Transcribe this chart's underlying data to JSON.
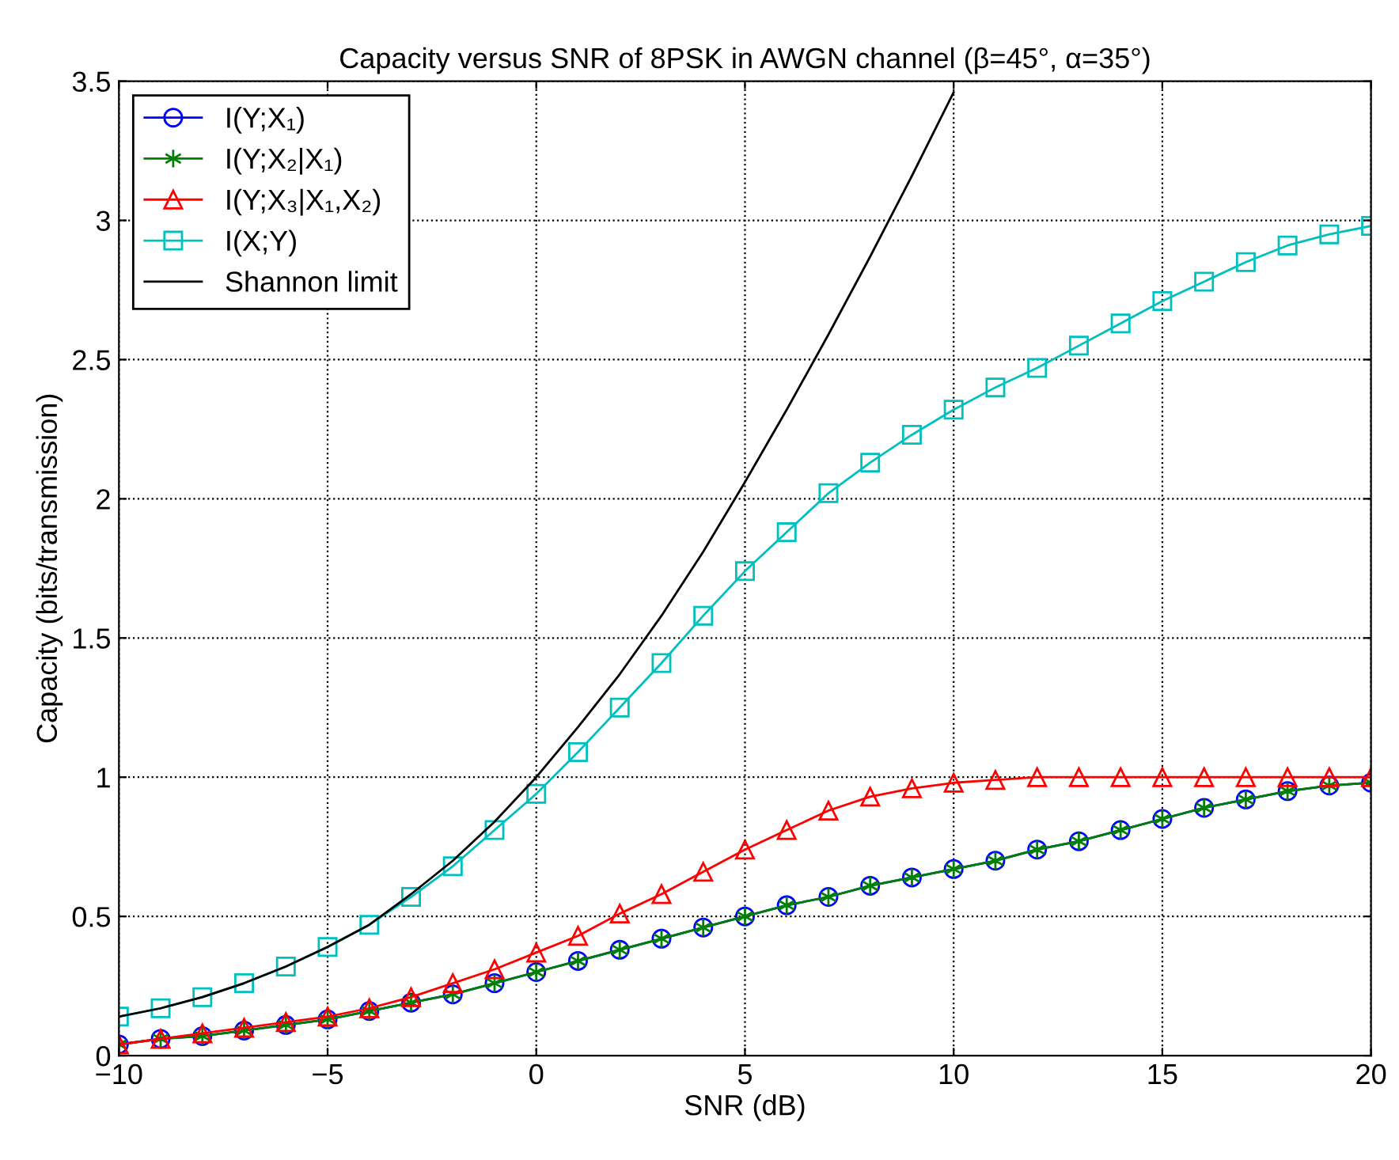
{
  "chart_data": {
    "type": "line",
    "title": "Capacity versus SNR of 8PSK in AWGN channel (β=45°, α=35°)",
    "xlabel": "SNR (dB)",
    "ylabel": "Capacity (bits/transmission)",
    "xlim": [
      -10,
      20
    ],
    "ylim": [
      0,
      3.5
    ],
    "xticks": [
      {
        "value": -10,
        "label": "−10"
      },
      {
        "value": -5,
        "label": "−5"
      },
      0,
      5,
      10,
      15,
      20
    ],
    "yticks": [
      0,
      0.5,
      1,
      1.5,
      2,
      2.5,
      3,
      3.5
    ],
    "grid": true,
    "legend": "top left",
    "x": [
      -10,
      -9,
      -8,
      -7,
      -6,
      -5,
      -4,
      -3,
      -2,
      -1,
      0,
      1,
      2,
      3,
      4,
      5,
      6,
      7,
      8,
      9,
      10,
      11,
      12,
      13,
      14,
      15,
      16,
      17,
      18,
      19,
      20
    ],
    "series": [
      {
        "name": "I(Y;X₁)",
        "color": "#0000ff",
        "marker": "circle",
        "values": [
          0.04,
          0.06,
          0.07,
          0.09,
          0.11,
          0.13,
          0.16,
          0.19,
          0.22,
          0.26,
          0.3,
          0.34,
          0.38,
          0.42,
          0.46,
          0.5,
          0.54,
          0.57,
          0.61,
          0.64,
          0.67,
          0.7,
          0.74,
          0.77,
          0.81,
          0.85,
          0.89,
          0.92,
          0.95,
          0.97,
          0.98
        ]
      },
      {
        "name": "I(Y;X₂|X₁)",
        "color": "#008000",
        "marker": "cross",
        "values": [
          0.04,
          0.06,
          0.07,
          0.09,
          0.11,
          0.13,
          0.16,
          0.19,
          0.22,
          0.26,
          0.3,
          0.34,
          0.38,
          0.42,
          0.46,
          0.5,
          0.54,
          0.57,
          0.61,
          0.64,
          0.67,
          0.7,
          0.74,
          0.77,
          0.81,
          0.85,
          0.89,
          0.92,
          0.95,
          0.97,
          0.98
        ]
      },
      {
        "name": "I(Y;X₃|X₁,X₂)",
        "color": "#ff0000",
        "marker": "triangle",
        "values": [
          0.04,
          0.06,
          0.08,
          0.1,
          0.12,
          0.14,
          0.17,
          0.21,
          0.26,
          0.31,
          0.37,
          0.43,
          0.51,
          0.58,
          0.66,
          0.74,
          0.81,
          0.88,
          0.93,
          0.96,
          0.98,
          0.99,
          1.0,
          1.0,
          1.0,
          1.0,
          1.0,
          1.0,
          1.0,
          1.0,
          1.0
        ]
      },
      {
        "name": "I(X;Y)",
        "color": "#00bfbf",
        "marker": "square",
        "values": [
          0.14,
          0.17,
          0.21,
          0.26,
          0.32,
          0.39,
          0.47,
          0.57,
          0.68,
          0.81,
          0.94,
          1.09,
          1.25,
          1.41,
          1.58,
          1.74,
          1.88,
          2.02,
          2.13,
          2.23,
          2.32,
          2.4,
          2.47,
          2.55,
          2.63,
          2.71,
          2.78,
          2.85,
          2.91,
          2.95,
          2.98
        ]
      },
      {
        "name": "Shannon limit",
        "color": "#000000",
        "marker": "none",
        "x": [
          -10,
          -9,
          -8,
          -7,
          -6,
          -5,
          -4,
          -3,
          -2,
          -1,
          0,
          1,
          2,
          3,
          4,
          5,
          6,
          7,
          8,
          9,
          10
        ],
        "values": [
          0.14,
          0.17,
          0.21,
          0.26,
          0.32,
          0.39,
          0.47,
          0.58,
          0.7,
          0.84,
          1.0,
          1.18,
          1.37,
          1.58,
          1.81,
          2.06,
          2.32,
          2.59,
          2.87,
          3.16,
          3.46
        ]
      }
    ]
  }
}
